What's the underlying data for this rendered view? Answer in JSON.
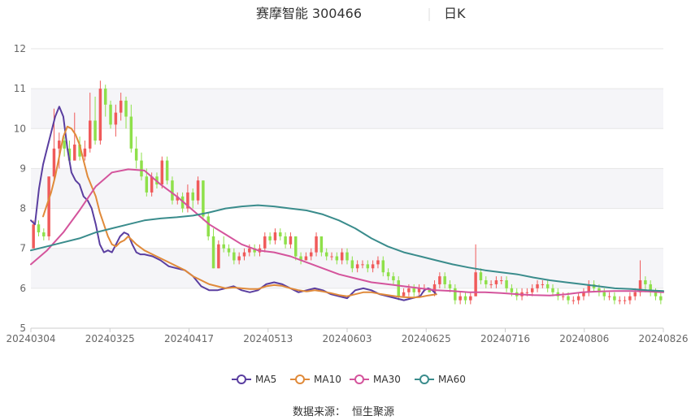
{
  "title": {
    "name": "赛摩智能 300466",
    "period": "日K"
  },
  "source": {
    "label": "数据来源：",
    "value": "恒生聚源"
  },
  "colors": {
    "up": "#f05a5a",
    "down": "#8ee04a",
    "grid_band": "#f5f5f8",
    "MA5": "#5a3ea0",
    "MA10": "#e08a3a",
    "MA30": "#d4549c",
    "MA60": "#3a8c8c"
  },
  "chart_data": {
    "type": "candlestick",
    "title": "赛摩智能 300466 日K",
    "ylim": [
      5,
      12
    ],
    "y_ticks": [
      "5",
      "6",
      "7",
      "8",
      "9",
      "10",
      "11",
      "12"
    ],
    "x_ticks": [
      "20240304",
      "20240325",
      "20240417",
      "20240513",
      "20240603",
      "20240625",
      "20240716",
      "20240806",
      "20240826"
    ],
    "legend": [
      "MA5",
      "MA10",
      "MA30",
      "MA60"
    ],
    "ohlc": [
      [
        7.0,
        7.6,
        7.0,
        7.7
      ],
      [
        7.6,
        7.4,
        7.3,
        7.7
      ],
      [
        7.4,
        7.3,
        7.2,
        7.5
      ],
      [
        7.3,
        8.8,
        7.2,
        8.8
      ],
      [
        8.8,
        9.5,
        8.7,
        10.5
      ],
      [
        9.5,
        9.7,
        9.0,
        9.9
      ],
      [
        9.7,
        9.5,
        9.3,
        9.8
      ],
      [
        9.5,
        9.2,
        9.1,
        9.7
      ],
      [
        9.2,
        9.6,
        9.2,
        10.4
      ],
      [
        9.6,
        9.3,
        9.2,
        9.8
      ],
      [
        9.3,
        9.5,
        9.2,
        9.7
      ],
      [
        9.5,
        10.2,
        9.4,
        10.9
      ],
      [
        10.2,
        9.7,
        9.6,
        10.8
      ],
      [
        9.7,
        11.0,
        9.6,
        11.2
      ],
      [
        11.0,
        10.6,
        10.3,
        11.1
      ],
      [
        10.6,
        10.1,
        10.0,
        10.7
      ],
      [
        10.1,
        10.4,
        9.8,
        10.6
      ],
      [
        10.4,
        10.7,
        10.2,
        10.9
      ],
      [
        10.7,
        10.3,
        10.0,
        10.8
      ],
      [
        10.3,
        9.5,
        9.4,
        10.6
      ],
      [
        9.5,
        9.2,
        9.0,
        9.8
      ],
      [
        9.2,
        8.8,
        8.7,
        9.4
      ],
      [
        8.8,
        8.4,
        8.3,
        9.0
      ],
      [
        8.4,
        8.8,
        8.3,
        8.9
      ],
      [
        8.8,
        8.6,
        8.5,
        8.9
      ],
      [
        8.6,
        9.2,
        8.5,
        9.3
      ],
      [
        9.2,
        8.7,
        8.6,
        9.3
      ],
      [
        8.7,
        8.2,
        8.1,
        8.8
      ],
      [
        8.2,
        8.3,
        8.1,
        8.4
      ],
      [
        8.3,
        8.0,
        7.9,
        8.4
      ],
      [
        8.0,
        8.4,
        7.9,
        8.6
      ],
      [
        8.4,
        8.2,
        8.0,
        8.5
      ],
      [
        8.2,
        8.7,
        8.1,
        8.8
      ],
      [
        8.7,
        7.8,
        7.7,
        8.7
      ],
      [
        7.8,
        7.3,
        7.2,
        7.9
      ],
      [
        7.3,
        6.5,
        6.5,
        7.5
      ],
      [
        6.5,
        7.1,
        6.5,
        7.2
      ],
      [
        7.1,
        7.0,
        6.9,
        7.3
      ],
      [
        7.0,
        6.9,
        6.8,
        7.1
      ],
      [
        6.9,
        6.7,
        6.6,
        7.0
      ],
      [
        6.7,
        6.8,
        6.6,
        6.9
      ],
      [
        6.8,
        6.9,
        6.7,
        7.0
      ],
      [
        6.9,
        7.0,
        6.8,
        7.1
      ],
      [
        7.0,
        6.9,
        6.8,
        7.1
      ],
      [
        6.9,
        7.0,
        6.8,
        7.1
      ],
      [
        7.0,
        7.3,
        6.9,
        7.4
      ],
      [
        7.3,
        7.2,
        7.1,
        7.4
      ],
      [
        7.2,
        7.4,
        7.1,
        7.5
      ],
      [
        7.4,
        7.3,
        7.2,
        7.5
      ],
      [
        7.3,
        7.1,
        7.0,
        7.4
      ],
      [
        7.1,
        7.3,
        7.0,
        7.4
      ],
      [
        7.3,
        6.8,
        6.7,
        7.3
      ],
      [
        6.8,
        6.7,
        6.6,
        6.9
      ],
      [
        6.7,
        6.8,
        6.7,
        6.9
      ],
      [
        6.8,
        6.9,
        6.7,
        7.0
      ],
      [
        6.9,
        7.3,
        6.8,
        7.4
      ],
      [
        7.3,
        6.9,
        6.8,
        7.3
      ],
      [
        6.9,
        6.8,
        6.7,
        7.0
      ],
      [
        6.8,
        6.8,
        6.7,
        6.9
      ],
      [
        6.8,
        6.7,
        6.6,
        6.9
      ],
      [
        6.7,
        6.9,
        6.6,
        7.0
      ],
      [
        6.9,
        6.7,
        6.6,
        7.0
      ],
      [
        6.7,
        6.5,
        6.4,
        6.8
      ],
      [
        6.5,
        6.6,
        6.4,
        6.7
      ],
      [
        6.6,
        6.6,
        6.5,
        6.7
      ],
      [
        6.6,
        6.5,
        6.4,
        6.7
      ],
      [
        6.5,
        6.6,
        6.4,
        6.7
      ],
      [
        6.6,
        6.7,
        6.5,
        6.8
      ],
      [
        6.7,
        6.4,
        6.3,
        6.8
      ],
      [
        6.4,
        6.3,
        6.2,
        6.5
      ],
      [
        6.3,
        6.2,
        6.1,
        6.4
      ],
      [
        6.2,
        5.8,
        5.7,
        6.3
      ],
      [
        5.8,
        5.9,
        5.8,
        6.0
      ],
      [
        5.9,
        6.0,
        5.8,
        6.1
      ],
      [
        6.0,
        5.9,
        5.8,
        6.1
      ],
      [
        5.9,
        6.0,
        5.8,
        6.1
      ],
      [
        6.0,
        6.0,
        5.9,
        6.1
      ],
      [
        6.0,
        5.9,
        5.9,
        6.0
      ],
      [
        5.9,
        6.1,
        5.8,
        6.2
      ],
      [
        6.1,
        6.3,
        6.0,
        6.4
      ],
      [
        6.3,
        6.1,
        6.0,
        6.4
      ],
      [
        6.1,
        6.0,
        5.9,
        6.2
      ],
      [
        6.0,
        5.7,
        5.6,
        6.1
      ],
      [
        5.7,
        5.8,
        5.6,
        5.9
      ],
      [
        5.8,
        5.7,
        5.6,
        5.9
      ],
      [
        5.7,
        5.8,
        5.6,
        5.9
      ],
      [
        5.8,
        6.4,
        5.8,
        7.1
      ],
      [
        6.4,
        6.2,
        6.1,
        6.5
      ],
      [
        6.2,
        6.1,
        6.0,
        6.3
      ],
      [
        6.1,
        6.1,
        6.0,
        6.2
      ],
      [
        6.1,
        6.2,
        6.0,
        6.3
      ],
      [
        6.2,
        6.2,
        6.1,
        6.3
      ],
      [
        6.2,
        6.0,
        5.9,
        6.3
      ],
      [
        6.0,
        5.9,
        5.8,
        6.1
      ],
      [
        5.9,
        5.8,
        5.7,
        6.0
      ],
      [
        5.8,
        5.9,
        5.7,
        6.0
      ],
      [
        5.9,
        5.9,
        5.8,
        6.0
      ],
      [
        5.9,
        6.0,
        5.8,
        6.1
      ],
      [
        6.0,
        6.1,
        5.9,
        6.2
      ],
      [
        6.1,
        6.1,
        6.0,
        6.2
      ],
      [
        6.1,
        6.0,
        5.9,
        6.2
      ],
      [
        6.0,
        5.9,
        5.8,
        6.1
      ],
      [
        5.9,
        5.8,
        5.7,
        6.0
      ],
      [
        5.8,
        5.8,
        5.7,
        5.9
      ],
      [
        5.8,
        5.7,
        5.6,
        5.9
      ],
      [
        5.7,
        5.7,
        5.6,
        5.8
      ],
      [
        5.7,
        5.8,
        5.6,
        5.9
      ],
      [
        5.8,
        5.9,
        5.7,
        6.0
      ],
      [
        5.9,
        6.1,
        5.8,
        6.2
      ],
      [
        6.1,
        6.0,
        5.9,
        6.2
      ],
      [
        6.0,
        5.9,
        5.8,
        6.1
      ],
      [
        5.9,
        5.8,
        5.7,
        6.0
      ],
      [
        5.8,
        5.8,
        5.7,
        5.9
      ],
      [
        5.8,
        5.7,
        5.6,
        5.9
      ],
      [
        5.7,
        5.7,
        5.6,
        5.8
      ],
      [
        5.7,
        5.7,
        5.6,
        5.8
      ],
      [
        5.7,
        5.8,
        5.6,
        5.9
      ],
      [
        5.8,
        5.9,
        5.7,
        6.0
      ],
      [
        5.9,
        6.2,
        5.8,
        6.7
      ],
      [
        6.2,
        6.1,
        5.9,
        6.3
      ],
      [
        6.1,
        5.9,
        5.8,
        6.2
      ],
      [
        5.9,
        5.8,
        5.7,
        6.0
      ],
      [
        5.8,
        5.7,
        5.6,
        5.9
      ]
    ],
    "ma": {
      "MA5": [
        [
          0,
          7.7
        ],
        [
          5,
          7.6
        ],
        [
          10,
          8.5
        ],
        [
          15,
          9.1
        ],
        [
          20,
          9.5
        ],
        [
          30,
          10.3
        ],
        [
          35,
          10.55
        ],
        [
          40,
          10.3
        ],
        [
          45,
          9.5
        ],
        [
          50,
          8.9
        ],
        [
          55,
          8.7
        ],
        [
          60,
          8.6
        ],
        [
          65,
          8.3
        ],
        [
          70,
          8.2
        ],
        [
          75,
          8.0
        ],
        [
          80,
          7.6
        ],
        [
          85,
          7.1
        ],
        [
          90,
          6.9
        ],
        [
          95,
          6.95
        ],
        [
          100,
          6.9
        ],
        [
          105,
          7.1
        ],
        [
          110,
          7.3
        ],
        [
          115,
          7.4
        ],
        [
          120,
          7.35
        ],
        [
          125,
          7.1
        ],
        [
          130,
          6.9
        ],
        [
          135,
          6.85
        ],
        [
          140,
          6.85
        ],
        [
          150,
          6.8
        ],
        [
          160,
          6.7
        ],
        [
          170,
          6.55
        ],
        [
          180,
          6.5
        ],
        [
          190,
          6.45
        ],
        [
          200,
          6.3
        ],
        [
          210,
          6.05
        ],
        [
          220,
          5.95
        ],
        [
          230,
          5.95
        ],
        [
          240,
          6.0
        ],
        [
          250,
          6.05
        ],
        [
          260,
          5.95
        ],
        [
          270,
          5.9
        ],
        [
          280,
          5.95
        ],
        [
          290,
          6.1
        ],
        [
          300,
          6.15
        ],
        [
          310,
          6.1
        ],
        [
          320,
          6.0
        ],
        [
          330,
          5.9
        ],
        [
          340,
          5.95
        ],
        [
          350,
          6.0
        ],
        [
          360,
          5.95
        ],
        [
          370,
          5.85
        ],
        [
          380,
          5.8
        ],
        [
          390,
          5.75
        ],
        [
          400,
          5.95
        ],
        [
          410,
          6.0
        ],
        [
          420,
          5.95
        ],
        [
          430,
          5.85
        ],
        [
          440,
          5.8
        ],
        [
          450,
          5.75
        ],
        [
          460,
          5.7
        ],
        [
          470,
          5.75
        ],
        [
          480,
          5.8
        ],
        [
          485,
          5.95
        ],
        [
          490,
          6.0
        ],
        [
          495,
          5.95
        ],
        [
          500,
          5.85
        ]
      ],
      "MA10": [
        [
          15,
          7.8
        ],
        [
          20,
          8.1
        ],
        [
          25,
          8.4
        ],
        [
          30,
          8.8
        ],
        [
          35,
          9.3
        ],
        [
          40,
          9.8
        ],
        [
          45,
          10.05
        ],
        [
          50,
          10.0
        ],
        [
          55,
          9.85
        ],
        [
          60,
          9.6
        ],
        [
          65,
          9.2
        ],
        [
          70,
          8.8
        ],
        [
          75,
          8.55
        ],
        [
          80,
          8.3
        ],
        [
          85,
          7.9
        ],
        [
          90,
          7.6
        ],
        [
          95,
          7.3
        ],
        [
          100,
          7.1
        ],
        [
          105,
          7.05
        ],
        [
          110,
          7.15
        ],
        [
          115,
          7.2
        ],
        [
          120,
          7.3
        ],
        [
          125,
          7.2
        ],
        [
          130,
          7.1
        ],
        [
          140,
          6.95
        ],
        [
          150,
          6.85
        ],
        [
          160,
          6.75
        ],
        [
          170,
          6.65
        ],
        [
          180,
          6.55
        ],
        [
          190,
          6.45
        ],
        [
          200,
          6.3
        ],
        [
          210,
          6.2
        ],
        [
          220,
          6.1
        ],
        [
          230,
          6.05
        ],
        [
          240,
          6.0
        ],
        [
          250,
          6.02
        ],
        [
          260,
          6.0
        ],
        [
          270,
          5.98
        ],
        [
          280,
          5.98
        ],
        [
          290,
          6.05
        ],
        [
          300,
          6.08
        ],
        [
          310,
          6.06
        ],
        [
          320,
          6.0
        ],
        [
          330,
          5.95
        ],
        [
          340,
          5.92
        ],
        [
          350,
          5.95
        ],
        [
          360,
          5.92
        ],
        [
          370,
          5.88
        ],
        [
          380,
          5.83
        ],
        [
          390,
          5.8
        ],
        [
          400,
          5.85
        ],
        [
          410,
          5.9
        ],
        [
          420,
          5.9
        ],
        [
          430,
          5.86
        ],
        [
          440,
          5.83
        ],
        [
          450,
          5.8
        ],
        [
          460,
          5.78
        ],
        [
          470,
          5.77
        ],
        [
          480,
          5.78
        ],
        [
          490,
          5.82
        ],
        [
          500,
          5.85
        ]
      ],
      "MA30": [
        [
          0,
          6.6
        ],
        [
          20,
          6.95
        ],
        [
          40,
          7.4
        ],
        [
          60,
          7.95
        ],
        [
          80,
          8.55
        ],
        [
          100,
          8.9
        ],
        [
          120,
          8.98
        ],
        [
          140,
          8.95
        ],
        [
          160,
          8.6
        ],
        [
          180,
          8.3
        ],
        [
          200,
          7.95
        ],
        [
          220,
          7.6
        ],
        [
          240,
          7.35
        ],
        [
          260,
          7.1
        ],
        [
          280,
          6.95
        ],
        [
          300,
          6.9
        ],
        [
          320,
          6.8
        ],
        [
          340,
          6.65
        ],
        [
          360,
          6.5
        ],
        [
          380,
          6.35
        ],
        [
          400,
          6.25
        ],
        [
          420,
          6.15
        ],
        [
          440,
          6.1
        ],
        [
          460,
          6.05
        ],
        [
          480,
          6.0
        ],
        [
          500,
          5.95
        ],
        [
          520,
          5.93
        ],
        [
          540,
          5.9
        ],
        [
          560,
          5.9
        ],
        [
          580,
          5.88
        ],
        [
          600,
          5.85
        ],
        [
          620,
          5.83
        ],
        [
          640,
          5.82
        ],
        [
          660,
          5.85
        ],
        [
          680,
          5.9
        ],
        [
          700,
          5.92
        ],
        [
          720,
          5.93
        ],
        [
          740,
          5.93
        ],
        [
          760,
          5.92
        ],
        [
          780,
          5.9
        ]
      ],
      "MA60": [
        [
          0,
          6.95
        ],
        [
          20,
          7.05
        ],
        [
          40,
          7.15
        ],
        [
          60,
          7.25
        ],
        [
          80,
          7.4
        ],
        [
          100,
          7.5
        ],
        [
          120,
          7.6
        ],
        [
          140,
          7.7
        ],
        [
          160,
          7.75
        ],
        [
          180,
          7.78
        ],
        [
          200,
          7.82
        ],
        [
          220,
          7.9
        ],
        [
          240,
          8.0
        ],
        [
          260,
          8.05
        ],
        [
          280,
          8.08
        ],
        [
          300,
          8.05
        ],
        [
          320,
          8.0
        ],
        [
          340,
          7.95
        ],
        [
          360,
          7.85
        ],
        [
          380,
          7.7
        ],
        [
          400,
          7.5
        ],
        [
          420,
          7.25
        ],
        [
          440,
          7.05
        ],
        [
          460,
          6.9
        ],
        [
          480,
          6.8
        ],
        [
          500,
          6.7
        ],
        [
          520,
          6.6
        ],
        [
          540,
          6.52
        ],
        [
          560,
          6.45
        ],
        [
          580,
          6.4
        ],
        [
          600,
          6.35
        ],
        [
          620,
          6.27
        ],
        [
          640,
          6.2
        ],
        [
          660,
          6.15
        ],
        [
          680,
          6.1
        ],
        [
          700,
          6.05
        ],
        [
          720,
          6.0
        ],
        [
          740,
          5.98
        ],
        [
          760,
          5.95
        ],
        [
          780,
          5.93
        ]
      ]
    }
  }
}
